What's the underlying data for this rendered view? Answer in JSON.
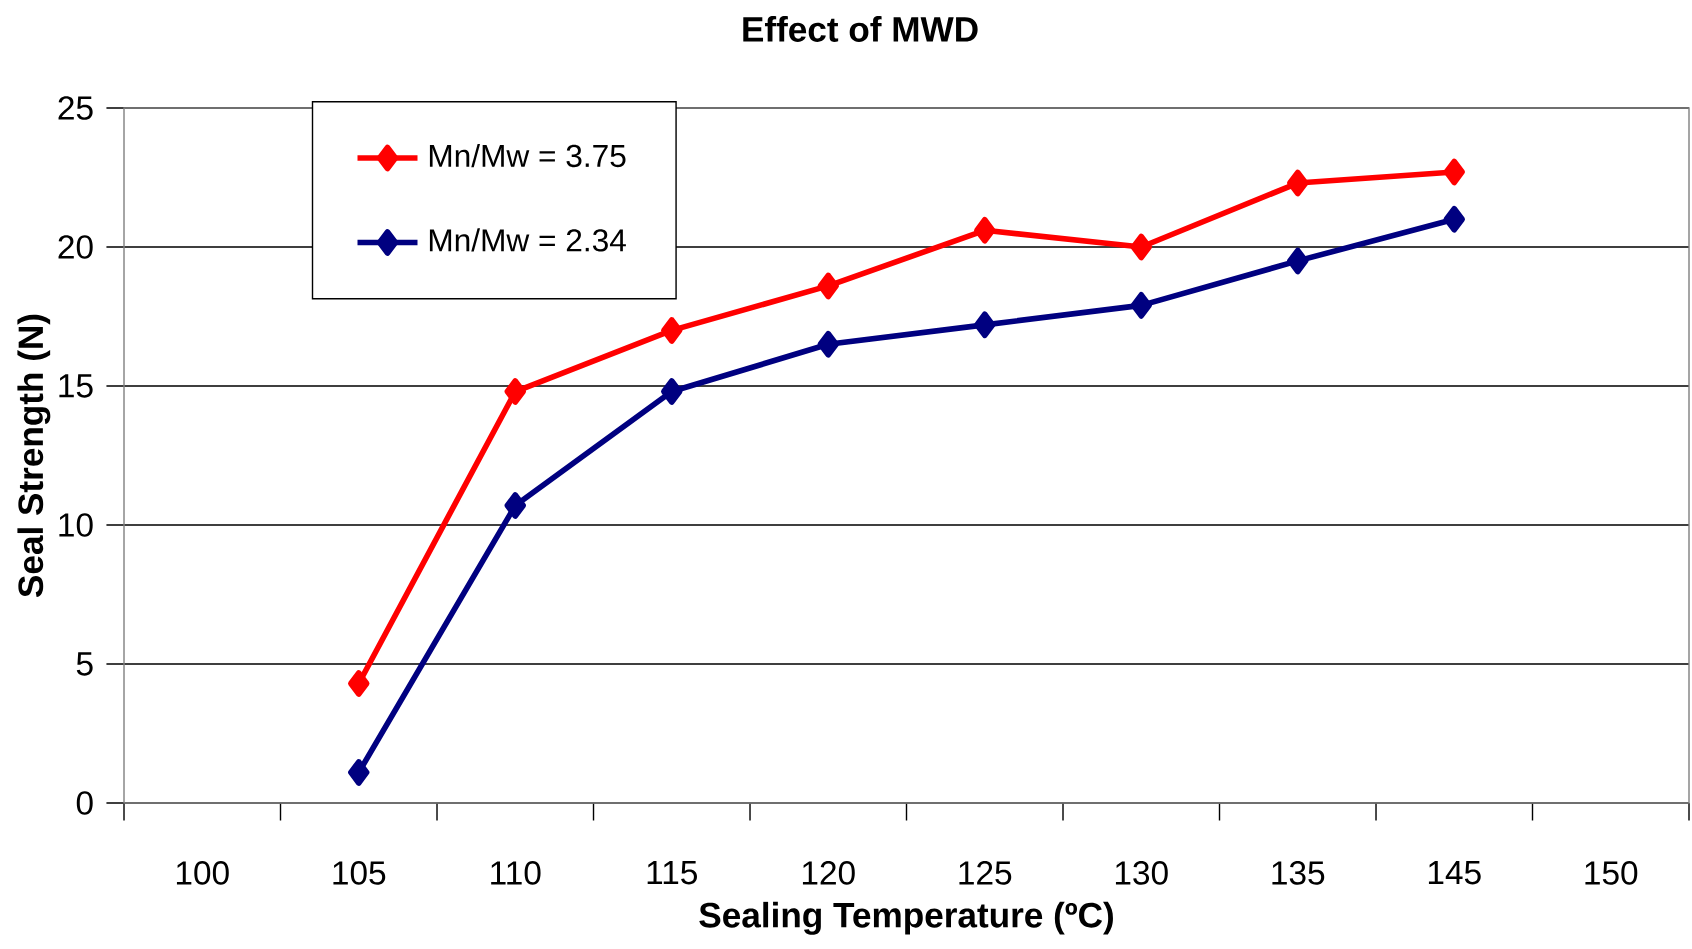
{
  "chart_data": {
    "type": "line",
    "title": "Effect of MWD",
    "xlabel": "Sealing Temperature (ºC)",
    "ylabel": "Seal Strength (N)",
    "categories": [
      "100",
      "105",
      "110",
      "115",
      "120",
      "125",
      "130",
      "135",
      "145",
      "150"
    ],
    "series": [
      {
        "name": "Mn/Mw = 3.75",
        "color": "#ff0000",
        "values": [
          null,
          4.3,
          14.8,
          17.0,
          18.6,
          20.6,
          20.0,
          22.3,
          22.7,
          null
        ]
      },
      {
        "name": "Mn/Mw = 2.34",
        "color": "#000080",
        "values": [
          null,
          1.1,
          10.7,
          14.8,
          16.5,
          17.2,
          17.9,
          19.5,
          21.0,
          null
        ]
      }
    ],
    "ylim": [
      0,
      25
    ],
    "yticks": [
      0,
      5,
      10,
      15,
      20,
      25
    ],
    "grid": "y",
    "legend": "top left",
    "marker": "diamond",
    "line_style": "solid"
  }
}
